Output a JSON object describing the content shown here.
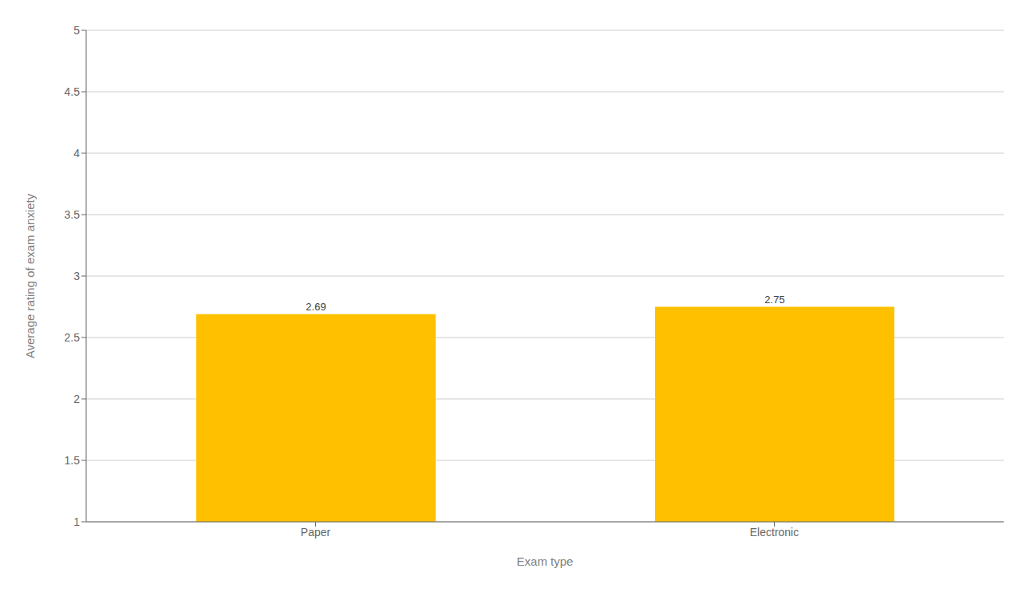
{
  "chart_data": {
    "type": "bar",
    "categories": [
      "Paper",
      "Electronic"
    ],
    "values": [
      2.69,
      2.75
    ],
    "color": "#FFC000",
    "xlabel": "Exam type",
    "ylabel": "Average rating of exam anxiety",
    "ylim": [
      1,
      5
    ],
    "yticks": [
      1,
      1.5,
      2,
      2.5,
      3,
      3.5,
      4,
      4.5,
      5
    ],
    "grid": true,
    "data_labels": true
  }
}
